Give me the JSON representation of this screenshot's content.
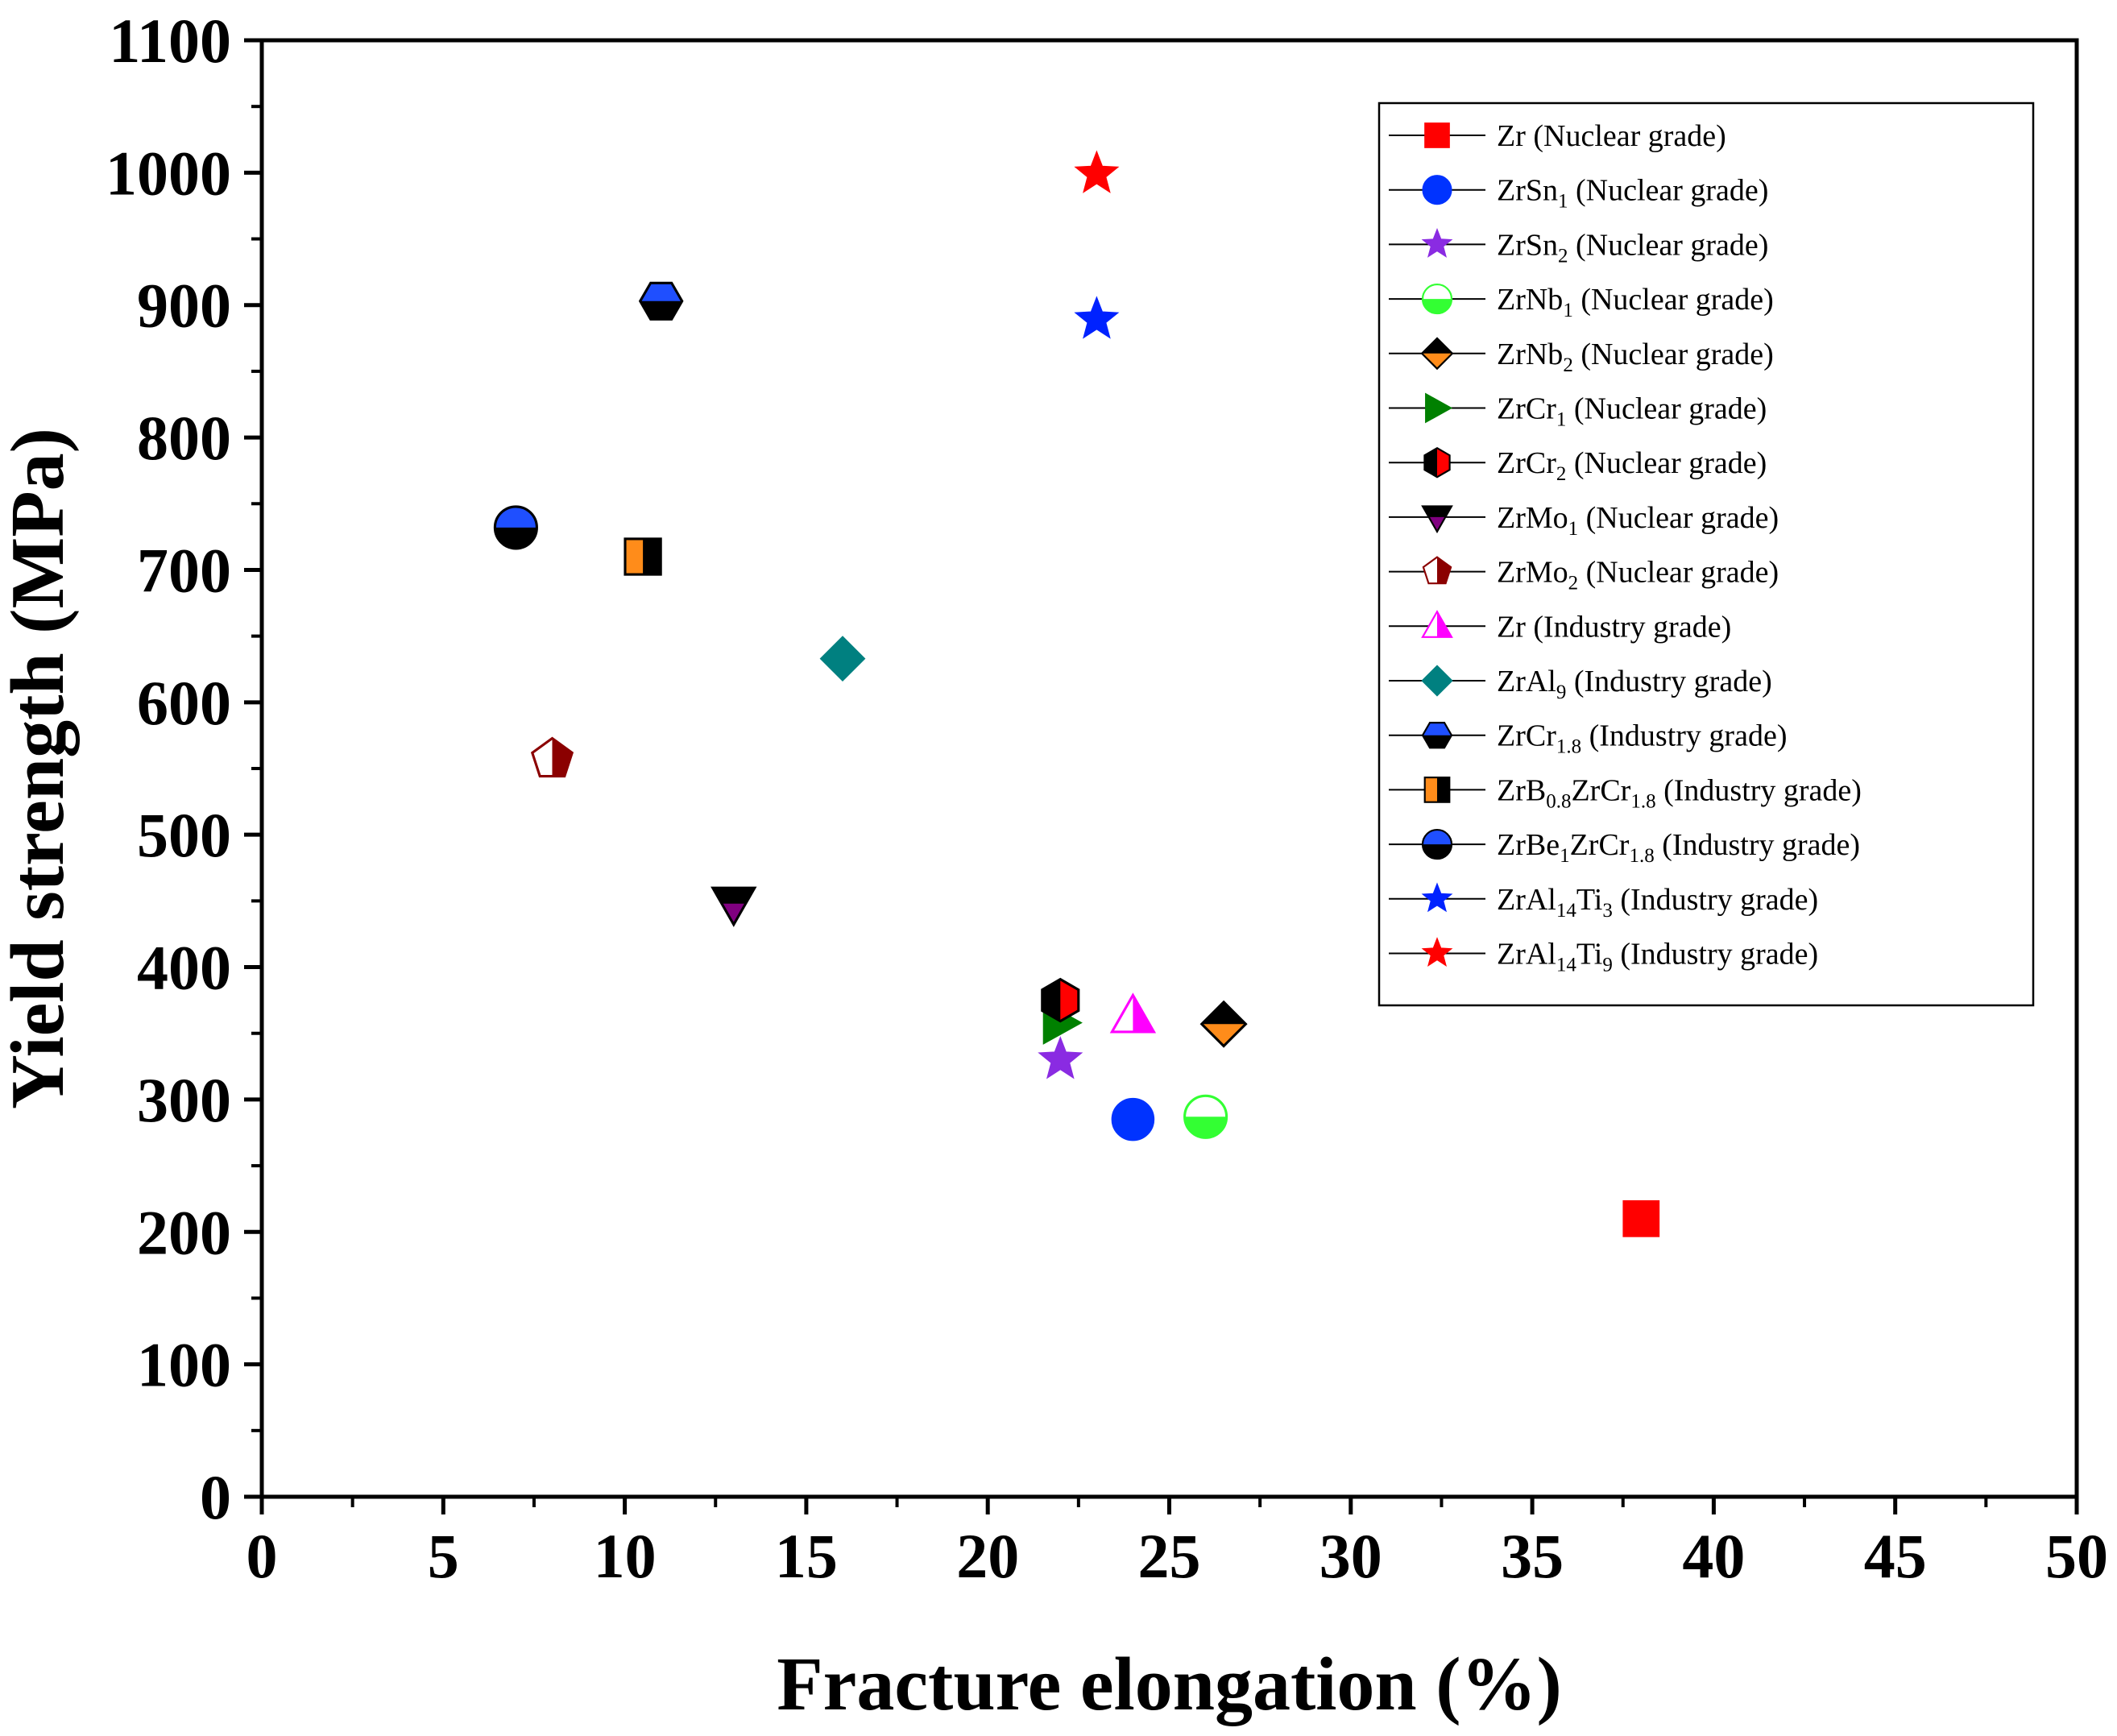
{
  "chart_data": {
    "type": "scatter",
    "title": "",
    "xlabel": "Fracture elongation (%)",
    "ylabel": "Yield strength (MPa)",
    "xlim": [
      0,
      50
    ],
    "ylim": [
      0,
      1100
    ],
    "xticks": [
      0,
      5,
      10,
      15,
      20,
      25,
      30,
      35,
      40,
      45,
      50
    ],
    "yticks": [
      0,
      100,
      200,
      300,
      400,
      500,
      600,
      700,
      800,
      900,
      1000,
      1100
    ],
    "xtick_labels": [
      "0",
      "5",
      "10",
      "15",
      "20",
      "25",
      "30",
      "35",
      "40",
      "45",
      "50"
    ],
    "ytick_labels": [
      "0",
      "100",
      "200",
      "300",
      "400",
      "500",
      "600",
      "700",
      "800",
      "900",
      "1000",
      "1100"
    ],
    "legend_position": "top-right",
    "series": [
      {
        "name": "Zr (Nuclear grade)",
        "base": "Zr",
        "sub": "",
        "rest": "",
        "sub2": "",
        "tail": " (Nuclear grade)",
        "marker": "square",
        "fill": "#ff0000",
        "fill2": "",
        "stroke": "#ff0000",
        "x": 38,
        "y": 210
      },
      {
        "name": "ZrSn1 (Nuclear grade)",
        "base": "ZrSn",
        "sub": "1",
        "rest": "",
        "sub2": "",
        "tail": " (Nuclear grade)",
        "marker": "circle",
        "fill": "#0033ff",
        "fill2": "",
        "stroke": "#0033ff",
        "x": 24,
        "y": 285
      },
      {
        "name": "ZrSn2 (Nuclear grade)",
        "base": "ZrSn",
        "sub": "2",
        "rest": "",
        "sub2": "",
        "tail": " (Nuclear grade)",
        "marker": "star",
        "fill": "#8a2be2",
        "fill2": "",
        "stroke": "#8a2be2",
        "x": 22,
        "y": 330
      },
      {
        "name": "ZrNb1 (Nuclear grade)",
        "base": "ZrNb",
        "sub": "1",
        "rest": "",
        "sub2": "",
        "tail": " (Nuclear grade)",
        "marker": "circle-half-bottom",
        "fill": "#33ff33",
        "fill2": "#ffffff",
        "stroke": "#33ff33",
        "x": 26,
        "y": 287
      },
      {
        "name": "ZrNb2 (Nuclear grade)",
        "base": "ZrNb",
        "sub": "2",
        "rest": "",
        "sub2": "",
        "tail": " (Nuclear grade)",
        "marker": "diamond-half-bottom",
        "fill": "#ff8c1a",
        "fill2": "#000000",
        "stroke": "#000000",
        "x": 26.5,
        "y": 357
      },
      {
        "name": "ZrCr1 (Nuclear grade)",
        "base": "ZrCr",
        "sub": "1",
        "rest": "",
        "sub2": "",
        "tail": " (Nuclear grade)",
        "marker": "triangle-right",
        "fill": "#008000",
        "fill2": "",
        "stroke": "#008000",
        "x": 22,
        "y": 358
      },
      {
        "name": "ZrCr2 (Nuclear grade)",
        "base": "ZrCr",
        "sub": "2",
        "rest": "",
        "sub2": "",
        "tail": " (Nuclear grade)",
        "marker": "hexagon-half-right",
        "fill": "#ff0000",
        "fill2": "#000000",
        "stroke": "#000000",
        "x": 22,
        "y": 375
      },
      {
        "name": "ZrMo1 (Nuclear grade)",
        "base": "ZrMo",
        "sub": "1",
        "rest": "",
        "sub2": "",
        "tail": " (Nuclear grade)",
        "marker": "triangle-down-half",
        "fill": "#800080",
        "fill2": "#000000",
        "stroke": "#000000",
        "x": 13,
        "y": 448
      },
      {
        "name": "ZrMo2 (Nuclear grade)",
        "base": "ZrMo",
        "sub": "2",
        "rest": "",
        "sub2": "",
        "tail": " (Nuclear grade)",
        "marker": "pentagon-half-right",
        "fill": "#8b0000",
        "fill2": "#ffffff",
        "stroke": "#8b0000",
        "x": 8,
        "y": 557
      },
      {
        "name": "Zr (Industry grade)",
        "base": "Zr",
        "sub": "",
        "rest": "",
        "sub2": "",
        "tail": " (Industry grade)",
        "marker": "triangle-up-half",
        "fill": "#ff00ff",
        "fill2": "#ffffff",
        "stroke": "#ff00ff",
        "x": 24,
        "y": 363
      },
      {
        "name": "ZrAl9 (Industry grade)",
        "base": "ZrAl",
        "sub": "9",
        "rest": "",
        "sub2": "",
        "tail": " (Industry grade)",
        "marker": "diamond",
        "fill": "#008080",
        "fill2": "",
        "stroke": "#008080",
        "x": 16,
        "y": 633
      },
      {
        "name": "ZrCr1.8 (Industry grade)",
        "base": "ZrCr",
        "sub": "1.8",
        "rest": "",
        "sub2": "",
        "tail": " (Industry grade)",
        "marker": "hexagon-half-top",
        "fill": "#1f4fff",
        "fill2": "#000000",
        "stroke": "#000000",
        "x": 11,
        "y": 903
      },
      {
        "name": "ZrB0.8ZrCr1.8 (Industry grade)",
        "base": "ZrB",
        "sub": "0.8",
        "rest": "ZrCr",
        "sub2": "1.8",
        "tail": " (Industry grade)",
        "marker": "square-half-left",
        "fill": "#ff8c1a",
        "fill2": "#000000",
        "stroke": "#000000",
        "x": 10.5,
        "y": 710
      },
      {
        "name": "ZrBe1ZrCr1.8 (Industry grade)",
        "base": "ZrBe",
        "sub": "1",
        "rest": "ZrCr",
        "sub2": "1.8",
        "tail": " (Industry grade)",
        "marker": "circle-half-top",
        "fill": "#1f4fff",
        "fill2": "#000000",
        "stroke": "#000000",
        "x": 7,
        "y": 732
      },
      {
        "name": "ZrAl14Ti3 (Industry grade)",
        "base": "ZrAl",
        "sub": "14",
        "rest": "Ti",
        "sub2": "3",
        "tail": " (Industry grade)",
        "marker": "star",
        "fill": "#0022ff",
        "fill2": "",
        "stroke": "#0022ff",
        "x": 23,
        "y": 889
      },
      {
        "name": "ZrAl14Ti9 (Industry grade)",
        "base": "ZrAl",
        "sub": "14",
        "rest": "Ti",
        "sub2": "9",
        "tail": " (Industry grade)",
        "marker": "star",
        "fill": "#ff0000",
        "fill2": "",
        "stroke": "#ff0000",
        "x": 23,
        "y": 999
      }
    ]
  }
}
